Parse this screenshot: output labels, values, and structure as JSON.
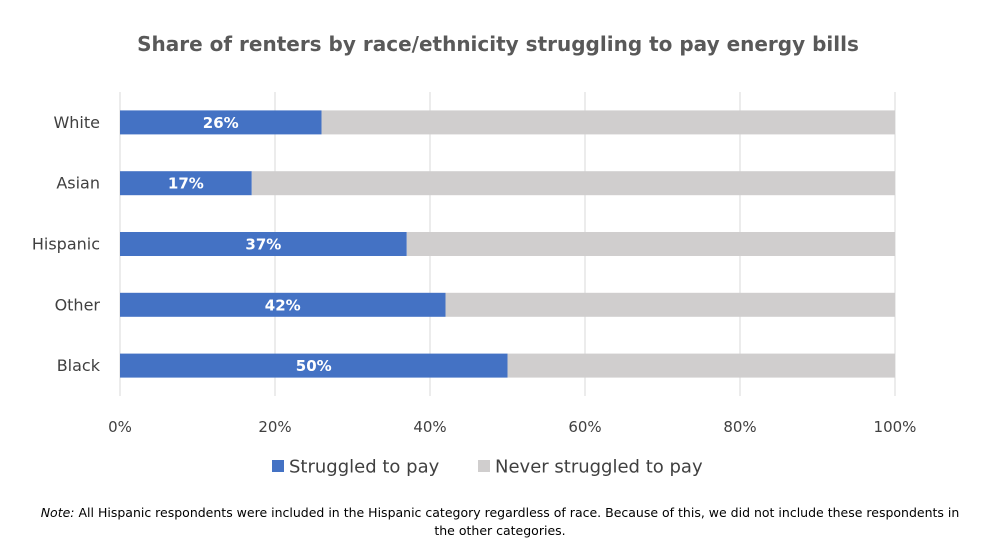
{
  "chart_data": {
    "type": "bar",
    "orientation": "horizontal",
    "stacked": true,
    "title": "Share of renters by race/ethnicity struggling to pay energy bills",
    "categories": [
      "White",
      "Asian",
      "Hispanic",
      "Other",
      "Black"
    ],
    "series": [
      {
        "name": "Struggled to pay",
        "values": [
          26,
          17,
          37,
          42,
          50
        ],
        "labels": [
          "26%",
          "17%",
          "37%",
          "42%",
          "50%"
        ],
        "color": "#4472C4"
      },
      {
        "name": "Never struggled to pay",
        "values": [
          74,
          83,
          63,
          58,
          50
        ],
        "color": "#D0CECE"
      }
    ],
    "x_ticks": [
      0,
      20,
      40,
      60,
      80,
      100
    ],
    "x_tick_labels": [
      "0%",
      "20%",
      "40%",
      "60%",
      "80%",
      "100%"
    ],
    "xlim": [
      0,
      100
    ],
    "grid": true,
    "gridline_color": "#D9D9D9",
    "legend_position": "bottom"
  },
  "note": {
    "prefix": "Note:",
    "text": " All Hispanic respondents were included in the Hispanic category regardless of race. Because of this, we did not include these respondents in the other categories."
  }
}
